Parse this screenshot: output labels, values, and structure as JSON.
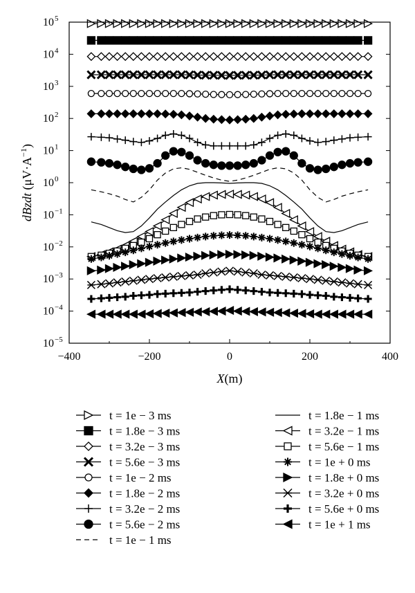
{
  "chart_data": {
    "type": "line",
    "title": "",
    "xlabel": "X (m)",
    "xlabel_var": "X",
    "xlabel_unit": "(m)",
    "ylabel": "dBzdt (μV·A⁻¹)",
    "ylabel_var": "dBzdt",
    "ylabel_unit_prefix": " (μV·A",
    "ylabel_unit_exp": "−1",
    "ylabel_unit_suffix": ")",
    "x_scale": "linear",
    "y_scale": "log",
    "xlim": [
      -400,
      400
    ],
    "ylim": [
      1e-05,
      100000.0
    ],
    "x_ticks": [
      "−400",
      "−200",
      "0",
      "200",
      "400"
    ],
    "y_ticks": [
      "10",
      "10",
      "10",
      "10",
      "10",
      "10",
      "10",
      "10",
      "10",
      "10",
      "10"
    ],
    "y_tick_exponents": [
      "−5",
      "−4",
      "−3",
      "−2",
      "−1",
      "0",
      "1",
      "2",
      "3",
      "4",
      "5"
    ],
    "grid": false,
    "legend_position": "below",
    "x": [
      -345,
      -320,
      -300,
      -280,
      -260,
      -240,
      -220,
      -200,
      -180,
      -160,
      -140,
      -120,
      -100,
      -80,
      -60,
      -40,
      -20,
      0,
      20,
      40,
      60,
      80,
      100,
      120,
      140,
      160,
      180,
      200,
      220,
      240,
      260,
      280,
      300,
      320,
      345
    ],
    "series": [
      {
        "name": "t = 1e − 3 ms",
        "marker": "tri-right-open",
        "values": [
          90000,
          90000,
          90000,
          90000,
          90000,
          90000,
          90000,
          90000,
          90000,
          90000,
          90000,
          90000,
          90000,
          90000,
          90000,
          90000,
          90000,
          90000,
          90000,
          90000,
          90000,
          90000,
          90000,
          90000,
          90000,
          90000,
          90000,
          90000,
          90000,
          90000,
          90000,
          90000,
          90000,
          90000,
          90000
        ]
      },
      {
        "name": "t = 1.8e − 3 ms",
        "marker": "square-filled",
        "values": [
          27000,
          27000,
          27000,
          27000,
          27000,
          27000,
          27000,
          27000,
          27000,
          27000,
          27000,
          27000,
          27000,
          27000,
          27000,
          27000,
          27000,
          27000,
          27000,
          27000,
          27000,
          27000,
          27000,
          27000,
          27000,
          27000,
          27000,
          27000,
          27000,
          27000,
          27000,
          27000,
          27000,
          27000,
          27000
        ]
      },
      {
        "name": "t = 3.2e − 3 ms",
        "marker": "diamond-open",
        "values": [
          8500,
          8500,
          8500,
          8500,
          8500,
          8500,
          8500,
          8500,
          8500,
          8500,
          8500,
          8500,
          8500,
          8500,
          8500,
          8500,
          8500,
          8500,
          8500,
          8500,
          8500,
          8500,
          8500,
          8500,
          8500,
          8500,
          8500,
          8500,
          8500,
          8500,
          8500,
          8500,
          8500,
          8500,
          8500
        ]
      },
      {
        "name": "t = 5.6e − 3 ms",
        "marker": "x-thick",
        "values": [
          2300,
          2300,
          2300,
          2300,
          2300,
          2300,
          2300,
          2300,
          2300,
          2300,
          2300,
          2300,
          2280,
          2250,
          2230,
          2220,
          2210,
          2200,
          2210,
          2220,
          2230,
          2250,
          2280,
          2300,
          2300,
          2300,
          2300,
          2300,
          2300,
          2300,
          2300,
          2300,
          2300,
          2300,
          2300
        ]
      },
      {
        "name": "t = 1e − 2 ms",
        "marker": "circle-open",
        "values": [
          600,
          600,
          600,
          600,
          600,
          600,
          600,
          600,
          600,
          600,
          600,
          600,
          590,
          580,
          570,
          560,
          555,
          550,
          555,
          560,
          570,
          580,
          590,
          600,
          600,
          600,
          600,
          600,
          600,
          600,
          600,
          600,
          600,
          600,
          600
        ]
      },
      {
        "name": "t = 1.8e − 2 ms",
        "marker": "diamond-filled",
        "values": [
          140,
          140,
          140,
          140,
          140,
          140,
          140,
          140,
          140,
          138,
          135,
          130,
          120,
          110,
          100,
          95,
          92,
          90,
          92,
          95,
          100,
          110,
          120,
          130,
          135,
          138,
          140,
          140,
          140,
          140,
          140,
          140,
          140,
          140,
          140
        ]
      },
      {
        "name": "t = 3.2e − 2 ms",
        "marker": "plus",
        "values": [
          27,
          26,
          25,
          23,
          21,
          19,
          18,
          20,
          24,
          30,
          33,
          30,
          24,
          18,
          15,
          14,
          14,
          14,
          14,
          14,
          15,
          18,
          24,
          30,
          33,
          30,
          24,
          20,
          18,
          19,
          21,
          23,
          25,
          26,
          27
        ]
      },
      {
        "name": "t = 5.6e − 2 ms",
        "marker": "circle-filled",
        "values": [
          4.5,
          4.3,
          4,
          3.6,
          3.1,
          2.7,
          2.5,
          2.8,
          4,
          7,
          9.5,
          9,
          7,
          5,
          4,
          3.6,
          3.4,
          3.4,
          3.4,
          3.6,
          4,
          5,
          7,
          9,
          9.5,
          7,
          4,
          2.8,
          2.5,
          2.7,
          3.1,
          3.6,
          4,
          4.3,
          4.5
        ]
      },
      {
        "name": "t = 1e − 1 ms",
        "marker": "dashed",
        "values": [
          0.6,
          0.52,
          0.45,
          0.38,
          0.3,
          0.25,
          0.35,
          0.6,
          1.2,
          2,
          2.7,
          2.9,
          2.6,
          2.1,
          1.7,
          1.4,
          1.2,
          1.1,
          1.2,
          1.4,
          1.7,
          2.1,
          2.6,
          2.9,
          2.7,
          2,
          1.2,
          0.6,
          0.35,
          0.25,
          0.3,
          0.38,
          0.45,
          0.52,
          0.6
        ]
      },
      {
        "name": "t = 1.8e − 1 ms",
        "marker": "solid",
        "values": [
          0.06,
          0.05,
          0.04,
          0.032,
          0.028,
          0.03,
          0.045,
          0.08,
          0.15,
          0.25,
          0.4,
          0.6,
          0.8,
          0.95,
          1,
          1,
          0.98,
          0.95,
          0.98,
          1,
          1,
          0.95,
          0.8,
          0.6,
          0.4,
          0.25,
          0.15,
          0.08,
          0.045,
          0.03,
          0.028,
          0.032,
          0.04,
          0.05,
          0.06
        ]
      },
      {
        "name": "t = 3.2e − 1 ms",
        "marker": "tri-left-open",
        "values": [
          0.005,
          0.0058,
          0.007,
          0.0085,
          0.011,
          0.015,
          0.021,
          0.03,
          0.045,
          0.07,
          0.11,
          0.17,
          0.24,
          0.31,
          0.37,
          0.41,
          0.43,
          0.44,
          0.43,
          0.41,
          0.37,
          0.31,
          0.24,
          0.17,
          0.11,
          0.07,
          0.045,
          0.03,
          0.021,
          0.015,
          0.011,
          0.0085,
          0.007,
          0.0058,
          0.005
        ]
      },
      {
        "name": "t = 5.6e − 1 ms",
        "marker": "square-open",
        "values": [
          0.005,
          0.0055,
          0.0063,
          0.0074,
          0.009,
          0.011,
          0.014,
          0.018,
          0.024,
          0.031,
          0.04,
          0.05,
          0.062,
          0.074,
          0.085,
          0.094,
          0.1,
          0.102,
          0.1,
          0.094,
          0.085,
          0.074,
          0.062,
          0.05,
          0.04,
          0.031,
          0.024,
          0.018,
          0.014,
          0.011,
          0.009,
          0.0074,
          0.0063,
          0.0055,
          0.005
        ]
      },
      {
        "name": "t = 1e + 0 ms",
        "marker": "asterisk",
        "values": [
          0.0042,
          0.0047,
          0.0053,
          0.006,
          0.0068,
          0.0078,
          0.009,
          0.0103,
          0.0117,
          0.0132,
          0.0148,
          0.0164,
          0.018,
          0.0195,
          0.021,
          0.0222,
          0.023,
          0.0234,
          0.023,
          0.0222,
          0.021,
          0.0195,
          0.018,
          0.0164,
          0.0148,
          0.0132,
          0.0117,
          0.0103,
          0.009,
          0.0078,
          0.0068,
          0.006,
          0.0053,
          0.0047,
          0.0042
        ]
      },
      {
        "name": "t = 1.8e + 0 ms",
        "marker": "tri-right-filled",
        "values": [
          0.0018,
          0.0019,
          0.0021,
          0.0023,
          0.0025,
          0.0028,
          0.003,
          0.0033,
          0.0036,
          0.0039,
          0.0042,
          0.0045,
          0.0048,
          0.0051,
          0.0054,
          0.0056,
          0.0058,
          0.0059,
          0.0058,
          0.0056,
          0.0054,
          0.0051,
          0.0048,
          0.0045,
          0.0042,
          0.0039,
          0.0036,
          0.0033,
          0.003,
          0.0028,
          0.0025,
          0.0023,
          0.0021,
          0.0019,
          0.0018
        ]
      },
      {
        "name": "t = 3.2e + 0 ms",
        "marker": "x-thin",
        "values": [
          0.00065,
          0.00069,
          0.00073,
          0.00078,
          0.00083,
          0.00088,
          0.00094,
          0.001,
          0.00106,
          0.00112,
          0.00118,
          0.00124,
          0.0013,
          0.00136,
          0.0015,
          0.0016,
          0.0017,
          0.0018,
          0.0017,
          0.0016,
          0.0015,
          0.00136,
          0.0013,
          0.00124,
          0.00118,
          0.00112,
          0.00106,
          0.001,
          0.00094,
          0.00088,
          0.00083,
          0.00078,
          0.00073,
          0.00069,
          0.00065
        ]
      },
      {
        "name": "t = 5.6e + 0 ms",
        "marker": "plus-thick",
        "values": [
          0.00024,
          0.00025,
          0.00026,
          0.00027,
          0.00028,
          0.0003,
          0.00031,
          0.00032,
          0.00034,
          0.00035,
          0.00036,
          0.00037,
          0.00038,
          0.0004,
          0.00042,
          0.00044,
          0.00046,
          0.00048,
          0.00046,
          0.00044,
          0.00042,
          0.0004,
          0.00038,
          0.00037,
          0.00036,
          0.00035,
          0.00034,
          0.00032,
          0.00031,
          0.0003,
          0.00028,
          0.00027,
          0.00026,
          0.00025,
          0.00024
        ]
      },
      {
        "name": "t = 1e + 1 ms",
        "marker": "tri-left-filled",
        "values": [
          8e-05,
          8e-05,
          8e-05,
          8e-05,
          8e-05,
          8e-05,
          8e-05,
          8.2e-05,
          8.4e-05,
          8.6e-05,
          8.8e-05,
          9e-05,
          9.2e-05,
          9.4e-05,
          9.6e-05,
          9.8e-05,
          0.0001,
          0.000105,
          0.0001,
          9.8e-05,
          9.6e-05,
          9.4e-05,
          9.2e-05,
          9e-05,
          8.8e-05,
          8.6e-05,
          8.4e-05,
          8.2e-05,
          8e-05,
          8e-05,
          8e-05,
          8e-05,
          8e-05,
          8e-05,
          8e-05
        ]
      }
    ]
  }
}
